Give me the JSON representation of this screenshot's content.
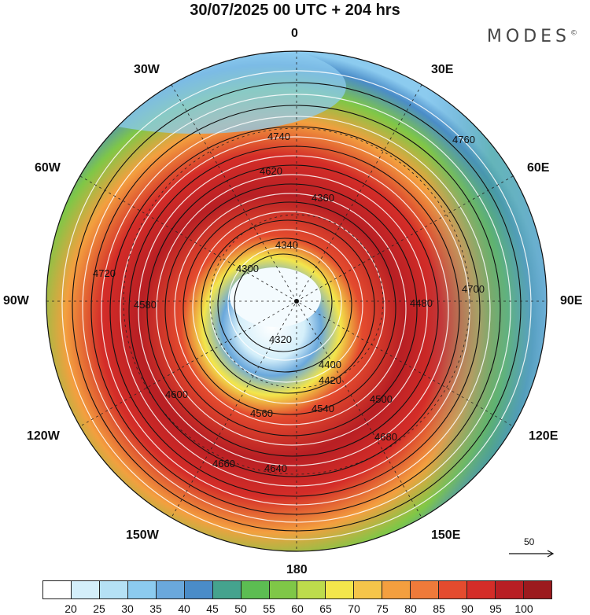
{
  "header": {
    "title": "30/07/2025  00 UTC  + 204 hrs",
    "brand": "MODES",
    "brand_mark": "©"
  },
  "longitude_labels": [
    "0",
    "30E",
    "60E",
    "90E",
    "120E",
    "150E",
    "180",
    "150W",
    "120W",
    "90W",
    "60W",
    "30W"
  ],
  "contours": [
    "4320",
    "4300",
    "4340",
    "4360",
    "4400",
    "4420",
    "4480",
    "4500",
    "4540",
    "4560",
    "4580",
    "4600",
    "4620",
    "4640",
    "4660",
    "4680",
    "4700",
    "4720",
    "4740",
    "4760"
  ],
  "reference_vector": {
    "label": "50"
  },
  "colorbar": {
    "colors": [
      "#ffffff",
      "#d4effa",
      "#b5e1f5",
      "#8ccbef",
      "#6aa8dc",
      "#4a8cc8",
      "#45a38e",
      "#5cbd52",
      "#7fc747",
      "#bddb4c",
      "#f3e64b",
      "#f5c54a",
      "#f39f3f",
      "#ef7a3a",
      "#e44b2e",
      "#d42d28",
      "#b81f24",
      "#9c1a1e"
    ],
    "labels": [
      "20",
      "25",
      "30",
      "35",
      "40",
      "45",
      "50",
      "55",
      "60",
      "65",
      "70",
      "75",
      "80",
      "85",
      "90",
      "95",
      "100"
    ]
  },
  "palette": {
    "ring_outer": "#2e81cc",
    "ring_green": "#4cbb4e",
    "ring_yellow": "#f3d64a",
    "ring_orange": "#f39440",
    "ring_red": "#d62b28",
    "ring_dark": "#b81f24",
    "core": "#e8f4fb"
  }
}
